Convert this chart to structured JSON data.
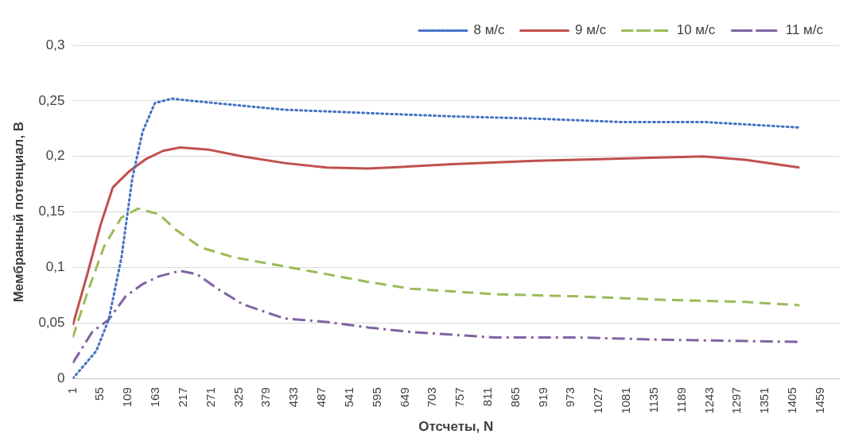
{
  "chart_data": {
    "type": "line",
    "xlabel": "Отсчеты, N",
    "ylabel": "Мембранный потенциал, В",
    "xlim": [
      1,
      1495
    ],
    "xticks": [
      1,
      55,
      109,
      163,
      217,
      271,
      325,
      379,
      433,
      487,
      541,
      595,
      649,
      703,
      757,
      811,
      865,
      919,
      973,
      1027,
      1081,
      1135,
      1189,
      1243,
      1297,
      1351,
      1405,
      1459
    ],
    "ylim": [
      0,
      0.3
    ],
    "yticks": [
      {
        "value": 0,
        "label": "0"
      },
      {
        "value": 0.05,
        "label": "0,05"
      },
      {
        "value": 0.1,
        "label": "0,1"
      },
      {
        "value": 0.15,
        "label": "0,15"
      },
      {
        "value": 0.2,
        "label": "0,2"
      },
      {
        "value": 0.25,
        "label": "0,25"
      },
      {
        "value": 0.3,
        "label": "0,3"
      }
    ],
    "grid": "y",
    "legend": "top right",
    "marker": "none",
    "series": [
      {
        "name": "8 м/с",
        "color": "#4472c4",
        "line_style": "dotted",
        "x": [
          1,
          47,
          71,
          96,
          117,
          137,
          161,
          194,
          234,
          300,
          414,
          577,
          741,
          904,
          1067,
          1230,
          1418
        ],
        "values": [
          0,
          0.025,
          0.053,
          0.109,
          0.18,
          0.222,
          0.248,
          0.252,
          0.25,
          0.247,
          0.242,
          0.239,
          0.236,
          0.234,
          0.231,
          0.231,
          0.226
        ]
      },
      {
        "name": "9 м/с",
        "color": "#c0504d",
        "line_style": "solid",
        "x": [
          1,
          30,
          55,
          79,
          112,
          145,
          177,
          210,
          267,
          332,
          414,
          496,
          577,
          741,
          904,
          1067,
          1230,
          1312,
          1418
        ],
        "values": [
          0.048,
          0.095,
          0.138,
          0.172,
          0.187,
          0.198,
          0.205,
          0.208,
          0.206,
          0.2,
          0.194,
          0.19,
          0.189,
          0.193,
          0.196,
          0.198,
          0.2,
          0.197,
          0.19
        ]
      },
      {
        "name": "10 м/с",
        "color": "#9bbb59",
        "line_style": "dashed",
        "x": [
          1,
          30,
          63,
          96,
          128,
          169,
          202,
          251,
          316,
          414,
          496,
          577,
          659,
          822,
          985,
          1149,
          1312,
          1418
        ],
        "values": [
          0.037,
          0.078,
          0.12,
          0.145,
          0.153,
          0.148,
          0.134,
          0.118,
          0.109,
          0.101,
          0.094,
          0.087,
          0.081,
          0.076,
          0.074,
          0.071,
          0.069,
          0.066
        ]
      },
      {
        "name": "11 м/с",
        "color": "#8064a2",
        "line_style": "dashdot",
        "x": [
          1,
          39,
          71,
          104,
          137,
          169,
          210,
          243,
          283,
          332,
          414,
          496,
          577,
          659,
          822,
          985,
          1149,
          1418
        ],
        "values": [
          0.014,
          0.042,
          0.053,
          0.074,
          0.085,
          0.092,
          0.097,
          0.094,
          0.081,
          0.067,
          0.054,
          0.051,
          0.046,
          0.042,
          0.037,
          0.037,
          0.035,
          0.033
        ]
      }
    ]
  }
}
